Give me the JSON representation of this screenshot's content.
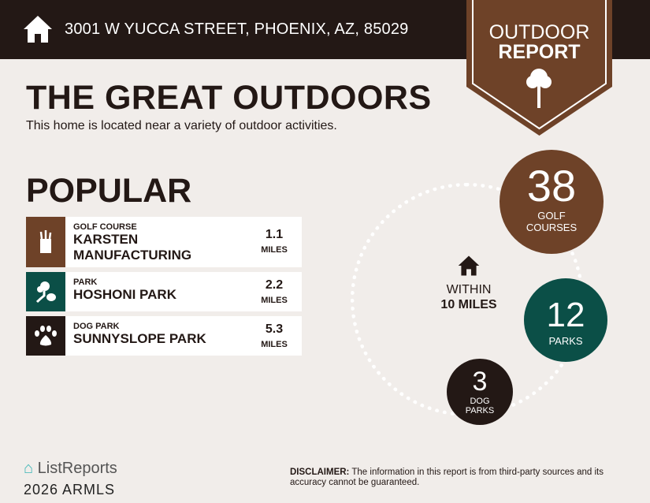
{
  "header": {
    "address": "3001 W YUCCA STREET, PHOENIX, AZ, 85029",
    "badge_line1": "OUTDOOR",
    "badge_line2": "REPORT"
  },
  "title": "THE GREAT OUTDOORS",
  "subtitle": "This home is located near a variety of outdoor activities.",
  "popular": {
    "heading": "POPULAR",
    "items": [
      {
        "category": "GOLF COURSE",
        "name": "KARSTEN MANUFACTURING",
        "distance": "1.1",
        "unit": "MILES",
        "icon": "golf-bag-icon",
        "color": "#6e4228"
      },
      {
        "category": "PARK",
        "name": "HOSHONI PARK",
        "distance": "2.2",
        "unit": "MILES",
        "icon": "park-tree-icon",
        "color": "#0b4f47"
      },
      {
        "category": "DOG PARK",
        "name": "SUNNYSLOPE PARK",
        "distance": "5.3",
        "unit": "MILES",
        "icon": "paw-icon",
        "color": "#231815"
      }
    ]
  },
  "summary": {
    "within_line1": "WITHIN",
    "within_line2": "10 MILES",
    "golf": {
      "count": "38",
      "label1": "GOLF",
      "label2": "COURSES",
      "color": "#6e4228"
    },
    "parks": {
      "count": "12",
      "label1": "PARKS",
      "color": "#0b4f47"
    },
    "dog": {
      "count": "3",
      "label1": "DOG",
      "label2": "PARKS",
      "color": "#231815"
    }
  },
  "footer": {
    "logo": "ListReports",
    "watermark": "2026 ARMLS",
    "disclaimer_label": "DISCLAIMER:",
    "disclaimer_text": " The information in this report is from third-party sources and its accuracy cannot be guaranteed."
  }
}
